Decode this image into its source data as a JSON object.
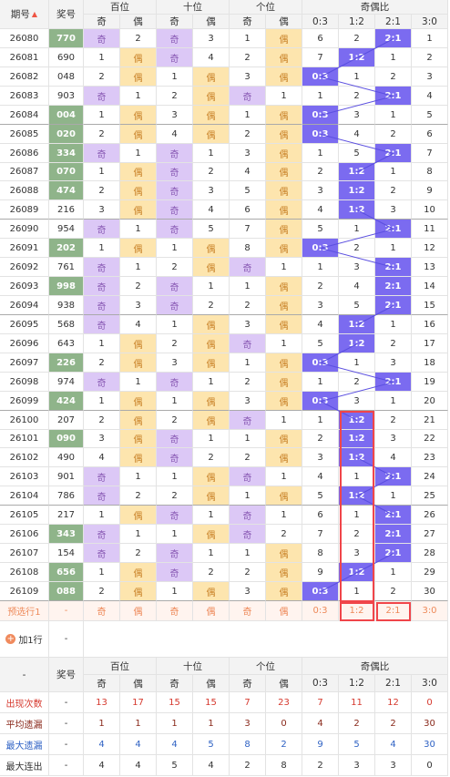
{
  "header": {
    "issue": "期号",
    "number": "奖号",
    "groups": [
      "百位",
      "十位",
      "个位",
      "奇偶比"
    ],
    "sub": [
      "奇",
      "偶",
      "奇",
      "偶",
      "奇",
      "偶",
      "0:3",
      "1:2",
      "2:1",
      "3:0"
    ]
  },
  "rows": [
    {
      "issue": "26080",
      "number": "770",
      "number_color": "#8fb48a",
      "cells": [
        "奇",
        2,
        "奇",
        3,
        1,
        "偶",
        6,
        2,
        "2:1",
        1
      ]
    },
    {
      "issue": "26081",
      "number": "690",
      "number_color": "#ffffff",
      "cells": [
        1,
        "偶",
        "奇",
        4,
        2,
        "偶",
        7,
        "1:2",
        1,
        2
      ]
    },
    {
      "issue": "26082",
      "number": "048",
      "number_color": "#ffffff",
      "cells": [
        2,
        "偶",
        1,
        "偶",
        3,
        "偶",
        "0:3",
        1,
        2,
        3
      ]
    },
    {
      "issue": "26083",
      "number": "903",
      "number_color": "#ffffff",
      "cells": [
        "奇",
        1,
        2,
        "偶",
        "奇",
        1,
        1,
        2,
        "2:1",
        4
      ]
    },
    {
      "issue": "26084",
      "number": "004",
      "number_color": "#8fb48a",
      "cells": [
        1,
        "偶",
        3,
        "偶",
        1,
        "偶",
        "0:3",
        3,
        1,
        5
      ]
    },
    {
      "issue": "26085",
      "number": "020",
      "number_color": "#8fb48a",
      "cells": [
        2,
        "偶",
        4,
        "偶",
        2,
        "偶",
        "0:3",
        4,
        2,
        6
      ]
    },
    {
      "issue": "26086",
      "number": "334",
      "number_color": "#8fb48a",
      "cells": [
        "奇",
        1,
        "奇",
        1,
        3,
        "偶",
        1,
        5,
        "2:1",
        7
      ]
    },
    {
      "issue": "26087",
      "number": "070",
      "number_color": "#8fb48a",
      "cells": [
        1,
        "偶",
        "奇",
        2,
        4,
        "偶",
        2,
        "1:2",
        1,
        8
      ]
    },
    {
      "issue": "26088",
      "number": "474",
      "number_color": "#8fb48a",
      "cells": [
        2,
        "偶",
        "奇",
        3,
        5,
        "偶",
        3,
        "1:2",
        2,
        9
      ]
    },
    {
      "issue": "26089",
      "number": "216",
      "number_color": "#ffffff",
      "cells": [
        3,
        "偶",
        "奇",
        4,
        6,
        "偶",
        4,
        "1:2",
        3,
        10
      ]
    },
    {
      "issue": "26090",
      "number": "954",
      "number_color": "#ffffff",
      "cells": [
        "奇",
        1,
        "奇",
        5,
        7,
        "偶",
        5,
        1,
        "2:1",
        11
      ]
    },
    {
      "issue": "26091",
      "number": "202",
      "number_color": "#8fb48a",
      "cells": [
        1,
        "偶",
        1,
        "偶",
        8,
        "偶",
        "0:3",
        2,
        1,
        12
      ]
    },
    {
      "issue": "26092",
      "number": "761",
      "number_color": "#ffffff",
      "cells": [
        "奇",
        1,
        2,
        "偶",
        "奇",
        1,
        1,
        3,
        "2:1",
        13
      ]
    },
    {
      "issue": "26093",
      "number": "998",
      "number_color": "#8fb48a",
      "cells": [
        "奇",
        2,
        "奇",
        1,
        1,
        "偶",
        2,
        4,
        "2:1",
        14
      ]
    },
    {
      "issue": "26094",
      "number": "938",
      "number_color": "#ffffff",
      "cells": [
        "奇",
        3,
        "奇",
        2,
        2,
        "偶",
        3,
        5,
        "2:1",
        15
      ]
    },
    {
      "issue": "26095",
      "number": "568",
      "number_color": "#ffffff",
      "cells": [
        "奇",
        4,
        1,
        "偶",
        3,
        "偶",
        4,
        "1:2",
        1,
        16
      ]
    },
    {
      "issue": "26096",
      "number": "643",
      "number_color": "#ffffff",
      "cells": [
        1,
        "偶",
        2,
        "偶",
        "奇",
        1,
        5,
        "1:2",
        2,
        17
      ]
    },
    {
      "issue": "26097",
      "number": "226",
      "number_color": "#8fb48a",
      "cells": [
        2,
        "偶",
        3,
        "偶",
        1,
        "偶",
        "0:3",
        1,
        3,
        18
      ]
    },
    {
      "issue": "26098",
      "number": "974",
      "number_color": "#ffffff",
      "cells": [
        "奇",
        1,
        "奇",
        1,
        2,
        "偶",
        1,
        2,
        "2:1",
        19
      ]
    },
    {
      "issue": "26099",
      "number": "424",
      "number_color": "#8fb48a",
      "cells": [
        1,
        "偶",
        1,
        "偶",
        3,
        "偶",
        "0:3",
        3,
        1,
        20
      ]
    },
    {
      "issue": "26100",
      "number": "207",
      "number_color": "#ffffff",
      "cells": [
        2,
        "偶",
        2,
        "偶",
        "奇",
        1,
        1,
        "1:2",
        2,
        21
      ]
    },
    {
      "issue": "26101",
      "number": "090",
      "number_color": "#8fb48a",
      "cells": [
        3,
        "偶",
        "奇",
        1,
        1,
        "偶",
        2,
        "1:2",
        3,
        22
      ]
    },
    {
      "issue": "26102",
      "number": "490",
      "number_color": "#ffffff",
      "cells": [
        4,
        "偶",
        "奇",
        2,
        2,
        "偶",
        3,
        "1:2",
        4,
        23
      ]
    },
    {
      "issue": "26103",
      "number": "901",
      "number_color": "#ffffff",
      "cells": [
        "奇",
        1,
        1,
        "偶",
        "奇",
        1,
        4,
        1,
        "2:1",
        24
      ]
    },
    {
      "issue": "26104",
      "number": "786",
      "number_color": "#ffffff",
      "cells": [
        "奇",
        2,
        2,
        "偶",
        1,
        "偶",
        5,
        "1:2",
        1,
        25
      ]
    },
    {
      "issue": "26105",
      "number": "217",
      "number_color": "#ffffff",
      "cells": [
        1,
        "偶",
        "奇",
        1,
        "奇",
        1,
        6,
        1,
        "2:1",
        26
      ]
    },
    {
      "issue": "26106",
      "number": "343",
      "number_color": "#8fb48a",
      "cells": [
        "奇",
        1,
        1,
        "偶",
        "奇",
        2,
        7,
        2,
        "2:1",
        27
      ]
    },
    {
      "issue": "26107",
      "number": "154",
      "number_color": "#ffffff",
      "cells": [
        "奇",
        2,
        "奇",
        1,
        1,
        "偶",
        8,
        3,
        "2:1",
        28
      ]
    },
    {
      "issue": "26108",
      "number": "656",
      "number_color": "#8fb48a",
      "cells": [
        1,
        "偶",
        "奇",
        2,
        2,
        "偶",
        9,
        "1:2",
        1,
        29
      ]
    },
    {
      "issue": "26109",
      "number": "088",
      "number_color": "#8fb48a",
      "cells": [
        2,
        "偶",
        1,
        "偶",
        3,
        "偶",
        "0:3",
        1,
        2,
        30
      ]
    }
  ],
  "preview": {
    "label": "预选行1",
    "number": "-",
    "cells": [
      "奇",
      "偶",
      "奇",
      "偶",
      "奇",
      "偶",
      "0:3",
      "1:2",
      "2:1",
      "3:0"
    ]
  },
  "add_row": {
    "label": "加1行",
    "number": "-"
  },
  "footer_header": {
    "issue": "-",
    "number": "奖号",
    "groups": [
      "百位",
      "十位",
      "个位",
      "奇偶比"
    ],
    "sub": [
      "奇",
      "偶",
      "奇",
      "偶",
      "奇",
      "偶",
      "0:3",
      "1:2",
      "2:1",
      "3:0"
    ]
  },
  "stats": [
    {
      "label": "出现次数",
      "number": "-",
      "color": "#d63a2f",
      "values": [
        13,
        17,
        15,
        15,
        7,
        23,
        7,
        11,
        12,
        0
      ]
    },
    {
      "label": "平均遗漏",
      "number": "-",
      "color": "#8a2a1c",
      "values": [
        1,
        1,
        1,
        1,
        3,
        0,
        4,
        2,
        2,
        30
      ]
    },
    {
      "label": "最大遗漏",
      "number": "-",
      "color": "#2f62c4",
      "values": [
        4,
        4,
        4,
        5,
        8,
        2,
        9,
        5,
        4,
        30
      ]
    },
    {
      "label": "最大连出",
      "number": "-",
      "color": "#333333",
      "values": [
        4,
        4,
        5,
        4,
        2,
        8,
        2,
        3,
        3,
        0
      ]
    }
  ]
}
